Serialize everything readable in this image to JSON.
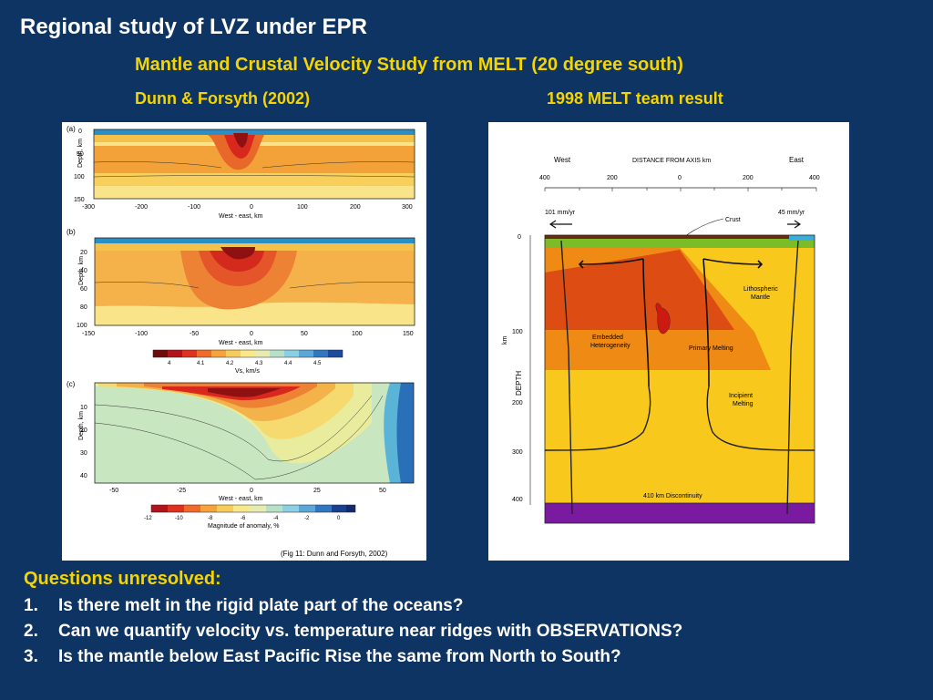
{
  "slide": {
    "title": "Regional study of LVZ under EPR",
    "subtitle": "Mantle and Crustal Velocity Study from MELT (20 degree south)",
    "left_title": "Dunn & Forsyth (2002)",
    "right_title": "1998 MELT team result"
  },
  "left_figure": {
    "panel_a": {
      "label": "(a)",
      "ylabel": "Depth, km",
      "yticks": [
        "0",
        "50",
        "100",
        "150"
      ],
      "xticks": [
        "-300",
        "-200",
        "-100",
        "0",
        "100",
        "200",
        "300"
      ],
      "xlabel": "West - east, km"
    },
    "panel_b": {
      "label": "(b)",
      "ylabel": "Depth, km",
      "yticks": [
        "20",
        "40",
        "60",
        "80",
        "100"
      ],
      "xticks": [
        "-150",
        "-100",
        "-50",
        "0",
        "50",
        "100",
        "150"
      ],
      "xlabel": "West - east, km"
    },
    "colorbar_1": {
      "ticks": [
        "4",
        "4.1",
        "4.2",
        "4.3",
        "4.4",
        "4.5"
      ],
      "label": "Vs, km/s"
    },
    "panel_c": {
      "label": "(c)",
      "ylabel": "Depth, km",
      "yticks": [
        "10",
        "20",
        "30",
        "40"
      ],
      "xticks": [
        "-50",
        "-25",
        "0",
        "25",
        "50"
      ],
      "xlabel": "West - east, km"
    },
    "colorbar_2": {
      "ticks": [
        "-12",
        "-10",
        "-8",
        "-6",
        "-4",
        "-2",
        "0"
      ],
      "label": "Magnitude of anomaly, %"
    },
    "caption": "(Fig 11: Dunn and Forsyth, 2002)"
  },
  "right_figure": {
    "west": "West",
    "east": "East",
    "distance_label": "DISTANCE FROM AXIS  km",
    "xticks": [
      "400",
      "200",
      "0",
      "200",
      "400"
    ],
    "left_rate": "101 mm/yr",
    "right_rate": "45 mm/yr",
    "crust": "Crust",
    "lithospheric_mantle": [
      "Lithospheric",
      "Mantle"
    ],
    "embedded": [
      "Embedded",
      "Heterogeneity"
    ],
    "primary_melting": "Primary Melting",
    "incipient_melting": [
      "Incipient",
      "Melting"
    ],
    "discontinuity": "410  km  Discontinuity",
    "depth_label": "DEPTH",
    "depth_unit": "km",
    "yticks": [
      "0",
      "100",
      "200",
      "300",
      "400"
    ]
  },
  "questions": {
    "heading": "Questions unresolved:",
    "items": [
      {
        "num": "1.",
        "text": "Is there melt in the rigid plate part of the oceans?"
      },
      {
        "num": "2.",
        "text": "Can we quantify velocity vs. temperature near ridges with OBSERVATIONS?"
      },
      {
        "num": "3.",
        "text": "Is the mantle below  East Pacific Rise the same from North to South?"
      }
    ]
  },
  "colors": {
    "background": "#0e3463",
    "accent": "#f5d400"
  }
}
